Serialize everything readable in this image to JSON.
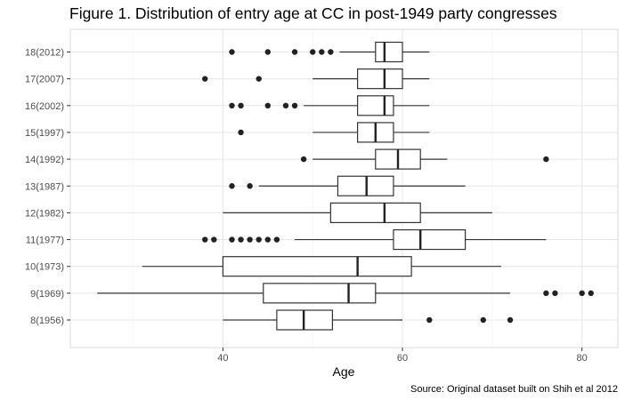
{
  "chart_data": {
    "type": "boxplot",
    "orientation": "horizontal",
    "title": "Figure 1. Distribution of entry age at CC in post-1949 party congresses",
    "xlabel": "Age",
    "ylabel": "",
    "caption": "Source: Original dataset built on Shih et al 2012",
    "xlim": [
      23,
      84
    ],
    "xticks": [
      40,
      60,
      80
    ],
    "grid": true,
    "categories": [
      "8(1956)",
      "9(1969)",
      "10(1973)",
      "11(1977)",
      "12(1982)",
      "13(1987)",
      "14(1992)",
      "15(1997)",
      "16(2002)",
      "17(2007)",
      "18(2012)"
    ],
    "boxes": [
      {
        "label": "8(1956)",
        "whisker_low": 40,
        "q1": 46,
        "median": 49,
        "q3": 52.2,
        "whisker_high": 60,
        "outliers": [
          63,
          69,
          72
        ]
      },
      {
        "label": "9(1969)",
        "whisker_low": 26,
        "q1": 44.5,
        "median": 54,
        "q3": 57,
        "whisker_high": 72,
        "outliers": [
          76,
          77,
          80,
          81
        ]
      },
      {
        "label": "10(1973)",
        "whisker_low": 31,
        "q1": 40,
        "median": 55,
        "q3": 61,
        "whisker_high": 71,
        "outliers": []
      },
      {
        "label": "11(1977)",
        "whisker_low": 48,
        "q1": 59,
        "median": 62,
        "q3": 67,
        "whisker_high": 76,
        "outliers": [
          38,
          39,
          41,
          42,
          43,
          44,
          45,
          46
        ]
      },
      {
        "label": "12(1982)",
        "whisker_low": 40,
        "q1": 52,
        "median": 58,
        "q3": 62,
        "whisker_high": 70,
        "outliers": []
      },
      {
        "label": "13(1987)",
        "whisker_low": 44,
        "q1": 52.8,
        "median": 56,
        "q3": 59,
        "whisker_high": 67,
        "outliers": [
          41,
          43
        ]
      },
      {
        "label": "14(1992)",
        "whisker_low": 50,
        "q1": 57,
        "median": 59.5,
        "q3": 62,
        "whisker_high": 65,
        "outliers": [
          49,
          76
        ]
      },
      {
        "label": "15(1997)",
        "whisker_low": 50,
        "q1": 55,
        "median": 57,
        "q3": 59,
        "whisker_high": 63,
        "outliers": [
          42
        ]
      },
      {
        "label": "16(2002)",
        "whisker_low": 49,
        "q1": 55,
        "median": 58,
        "q3": 59,
        "whisker_high": 63,
        "outliers": [
          41,
          42,
          45,
          47,
          48
        ]
      },
      {
        "label": "17(2007)",
        "whisker_low": 50,
        "q1": 55,
        "median": 58,
        "q3": 60,
        "whisker_high": 63,
        "outliers": [
          38,
          44
        ]
      },
      {
        "label": "18(2012)",
        "whisker_low": 53,
        "q1": 57,
        "median": 58,
        "q3": 60,
        "whisker_high": 63,
        "outliers": [
          41,
          45,
          48,
          50,
          51,
          52
        ]
      }
    ]
  }
}
